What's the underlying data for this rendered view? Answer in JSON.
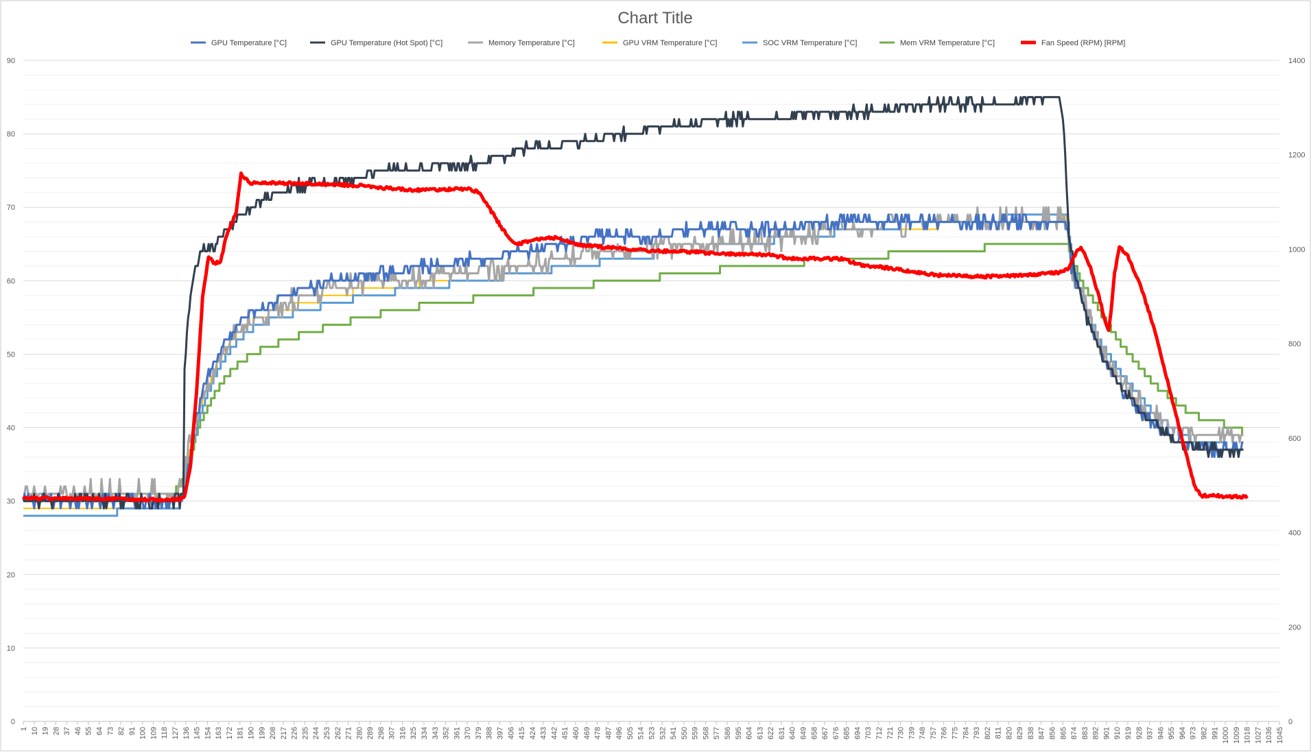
{
  "chart_data": {
    "type": "line",
    "title": "Chart Title",
    "xlabel": "",
    "ylabel": "",
    "y2label": "",
    "xlim": [
      1,
      1045
    ],
    "ylim": [
      0,
      90
    ],
    "y2lim": [
      0,
      1400
    ],
    "yticks": [
      0,
      10,
      20,
      30,
      40,
      50,
      60,
      70,
      80,
      90
    ],
    "y2ticks": [
      0,
      200,
      400,
      600,
      800,
      1000,
      1200,
      1400
    ],
    "xtick_start": 1,
    "xtick_step": 9,
    "xtick_count": 117,
    "grid": "major and minor horizontal",
    "legend_position": "top",
    "series": [
      {
        "name": "GPU Temperature [°C]",
        "axis": "left",
        "color": "#4472c4",
        "width": 3,
        "noise": 0.7,
        "points": [
          [
            1,
            30
          ],
          [
            130,
            30
          ],
          [
            135,
            31
          ],
          [
            138,
            34
          ],
          [
            145,
            42
          ],
          [
            155,
            47
          ],
          [
            165,
            51
          ],
          [
            175,
            53
          ],
          [
            185,
            55
          ],
          [
            200,
            56
          ],
          [
            220,
            58
          ],
          [
            240,
            59
          ],
          [
            260,
            60
          ],
          [
            300,
            61
          ],
          [
            340,
            62
          ],
          [
            380,
            63
          ],
          [
            420,
            64
          ],
          [
            450,
            65
          ],
          [
            480,
            66
          ],
          [
            520,
            66
          ],
          [
            560,
            67
          ],
          [
            620,
            67
          ],
          [
            680,
            68
          ],
          [
            750,
            68
          ],
          [
            860,
            68
          ],
          [
            868,
            68
          ],
          [
            872,
            62
          ],
          [
            885,
            55
          ],
          [
            900,
            49
          ],
          [
            915,
            45
          ],
          [
            930,
            42
          ],
          [
            945,
            40
          ],
          [
            960,
            38
          ],
          [
            985,
            37
          ],
          [
            1015,
            37
          ]
        ]
      },
      {
        "name": "GPU Temperature (Hot Spot) [°C]",
        "axis": "left",
        "color": "#323f4f",
        "width": 3,
        "noise": 0.6,
        "points": [
          [
            1,
            30
          ],
          [
            132,
            30
          ],
          [
            134,
            31
          ],
          [
            135,
            48
          ],
          [
            138,
            55
          ],
          [
            142,
            60
          ],
          [
            146,
            63
          ],
          [
            150,
            64
          ],
          [
            160,
            65
          ],
          [
            170,
            67
          ],
          [
            180,
            69
          ],
          [
            190,
            70
          ],
          [
            200,
            71
          ],
          [
            215,
            72
          ],
          [
            230,
            73
          ],
          [
            260,
            73.5
          ],
          [
            300,
            75
          ],
          [
            340,
            75.5
          ],
          [
            380,
            76
          ],
          [
            420,
            78
          ],
          [
            450,
            78.5
          ],
          [
            470,
            79
          ],
          [
            500,
            80
          ],
          [
            540,
            81
          ],
          [
            590,
            82
          ],
          [
            640,
            82.5
          ],
          [
            700,
            83
          ],
          [
            760,
            84
          ],
          [
            800,
            84
          ],
          [
            830,
            84.5
          ],
          [
            863,
            84.5
          ],
          [
            866,
            80
          ],
          [
            868,
            73
          ],
          [
            870,
            66
          ],
          [
            875,
            61
          ],
          [
            885,
            55
          ],
          [
            900,
            49
          ],
          [
            915,
            45
          ],
          [
            930,
            42
          ],
          [
            945,
            40
          ],
          [
            960,
            38
          ],
          [
            985,
            37
          ],
          [
            1015,
            36.5
          ]
        ]
      },
      {
        "name": "Memory Temperature [°C]",
        "axis": "left",
        "color": "#a5a5a5",
        "width": 3,
        "noise": 1.3,
        "points": [
          [
            1,
            31
          ],
          [
            130,
            31.5
          ],
          [
            135,
            33
          ],
          [
            138,
            37
          ],
          [
            145,
            42
          ],
          [
            155,
            46
          ],
          [
            165,
            50
          ],
          [
            175,
            52
          ],
          [
            185,
            54
          ],
          [
            200,
            55
          ],
          [
            220,
            57
          ],
          [
            240,
            58
          ],
          [
            260,
            59
          ],
          [
            300,
            60
          ],
          [
            340,
            60.5
          ],
          [
            380,
            61.5
          ],
          [
            420,
            62
          ],
          [
            450,
            63
          ],
          [
            480,
            64
          ],
          [
            520,
            64.5
          ],
          [
            560,
            65
          ],
          [
            620,
            65.5
          ],
          [
            680,
            67
          ],
          [
            750,
            68
          ],
          [
            860,
            68.5
          ],
          [
            868,
            68
          ],
          [
            872,
            62
          ],
          [
            885,
            56
          ],
          [
            900,
            50
          ],
          [
            915,
            46
          ],
          [
            930,
            43
          ],
          [
            945,
            41
          ],
          [
            960,
            40
          ],
          [
            985,
            39
          ],
          [
            1015,
            39
          ]
        ]
      },
      {
        "name": "GPU VRM Temperature [°C]",
        "axis": "left",
        "color": "#ffc000",
        "width": 2,
        "noise": 0,
        "points": [
          [
            1,
            29
          ],
          [
            80,
            29
          ],
          [
            85,
            29
          ],
          [
            130,
            29
          ],
          [
            135,
            32
          ],
          [
            140,
            38
          ],
          [
            150,
            44
          ],
          [
            160,
            48
          ],
          [
            170,
            51
          ],
          [
            180,
            53
          ],
          [
            195,
            55
          ],
          [
            215,
            56
          ],
          [
            235,
            57
          ],
          [
            260,
            58
          ],
          [
            290,
            59
          ],
          [
            330,
            59.5
          ],
          [
            380,
            60
          ],
          [
            420,
            61
          ],
          [
            460,
            62
          ],
          [
            500,
            63
          ],
          [
            550,
            64
          ],
          [
            600,
            65
          ],
          [
            650,
            66
          ],
          [
            700,
            67
          ],
          [
            760,
            67.5
          ],
          [
            868,
            68.5
          ],
          [
            870,
            64
          ],
          [
            880,
            58
          ],
          [
            895,
            52
          ],
          [
            910,
            48
          ],
          [
            925,
            45
          ],
          [
            940,
            42
          ],
          [
            955,
            40
          ],
          [
            970,
            38.5
          ],
          [
            1015,
            37
          ]
        ]
      },
      {
        "name": "SOC VRM Temperature [°C]",
        "axis": "left",
        "color": "#5b9bd5",
        "width": 3,
        "noise": 0,
        "points": [
          [
            1,
            28
          ],
          [
            78,
            28
          ],
          [
            80,
            29
          ],
          [
            130,
            29
          ],
          [
            135,
            32
          ],
          [
            140,
            37
          ],
          [
            150,
            43
          ],
          [
            160,
            47
          ],
          [
            170,
            50
          ],
          [
            180,
            52
          ],
          [
            195,
            54
          ],
          [
            215,
            55
          ],
          [
            235,
            56
          ],
          [
            260,
            57
          ],
          [
            290,
            58
          ],
          [
            330,
            59
          ],
          [
            380,
            60
          ],
          [
            420,
            61
          ],
          [
            460,
            62
          ],
          [
            500,
            63
          ],
          [
            550,
            64
          ],
          [
            600,
            65
          ],
          [
            650,
            66
          ],
          [
            700,
            67
          ],
          [
            760,
            68
          ],
          [
            868,
            69
          ],
          [
            872,
            63
          ],
          [
            880,
            58
          ],
          [
            895,
            52
          ],
          [
            910,
            48
          ],
          [
            925,
            45
          ],
          [
            940,
            42
          ],
          [
            955,
            40
          ],
          [
            970,
            38.5
          ],
          [
            1015,
            37
          ]
        ]
      },
      {
        "name": "Mem VRM Temperature [°C]",
        "axis": "left",
        "color": "#70ad47",
        "width": 3,
        "noise": 0,
        "points": [
          [
            1,
            30
          ],
          [
            125,
            31
          ],
          [
            130,
            32
          ],
          [
            135,
            33
          ],
          [
            140,
            36
          ],
          [
            146,
            40
          ],
          [
            155,
            43
          ],
          [
            165,
            46
          ],
          [
            175,
            48
          ],
          [
            190,
            50
          ],
          [
            205,
            51
          ],
          [
            220,
            52
          ],
          [
            240,
            53
          ],
          [
            260,
            54
          ],
          [
            285,
            55
          ],
          [
            310,
            56
          ],
          [
            350,
            57
          ],
          [
            400,
            58
          ],
          [
            450,
            59
          ],
          [
            500,
            60
          ],
          [
            560,
            61
          ],
          [
            600,
            62
          ],
          [
            650,
            62.5
          ],
          [
            700,
            63
          ],
          [
            740,
            64
          ],
          [
            800,
            64.5
          ],
          [
            868,
            65
          ],
          [
            872,
            63
          ],
          [
            880,
            60
          ],
          [
            895,
            56
          ],
          [
            910,
            52
          ],
          [
            925,
            49
          ],
          [
            940,
            46
          ],
          [
            955,
            44
          ],
          [
            970,
            42
          ],
          [
            985,
            41
          ],
          [
            1012,
            40
          ],
          [
            1015,
            39
          ]
        ]
      },
      {
        "name": "Fan Speed (RPM) [RPM]",
        "axis": "right",
        "color": "#ff0000",
        "width": 5,
        "noise": 3,
        "points": [
          [
            1,
            473
          ],
          [
            100,
            470
          ],
          [
            130,
            470
          ],
          [
            135,
            475
          ],
          [
            140,
            540
          ],
          [
            145,
            700
          ],
          [
            150,
            900
          ],
          [
            155,
            985
          ],
          [
            160,
            970
          ],
          [
            165,
            975
          ],
          [
            170,
            1030
          ],
          [
            175,
            1060
          ],
          [
            178,
            1080
          ],
          [
            182,
            1160
          ],
          [
            185,
            1150
          ],
          [
            190,
            1140
          ],
          [
            230,
            1140
          ],
          [
            280,
            1135
          ],
          [
            300,
            1130
          ],
          [
            330,
            1125
          ],
          [
            370,
            1128
          ],
          [
            380,
            1120
          ],
          [
            390,
            1080
          ],
          [
            400,
            1040
          ],
          [
            410,
            1010
          ],
          [
            430,
            1022
          ],
          [
            445,
            1025
          ],
          [
            460,
            1010
          ],
          [
            480,
            1005
          ],
          [
            520,
            997
          ],
          [
            560,
            994
          ],
          [
            580,
            990
          ],
          [
            620,
            988
          ],
          [
            640,
            980
          ],
          [
            680,
            980
          ],
          [
            700,
            965
          ],
          [
            720,
            960
          ],
          [
            760,
            945
          ],
          [
            800,
            942
          ],
          [
            830,
            945
          ],
          [
            860,
            950
          ],
          [
            870,
            960
          ],
          [
            874,
            985
          ],
          [
            880,
            1005
          ],
          [
            888,
            960
          ],
          [
            895,
            900
          ],
          [
            900,
            850
          ],
          [
            903,
            830
          ],
          [
            905,
            870
          ],
          [
            908,
            950
          ],
          [
            912,
            1005
          ],
          [
            918,
            990
          ],
          [
            925,
            950
          ],
          [
            930,
            920
          ],
          [
            940,
            840
          ],
          [
            950,
            740
          ],
          [
            960,
            640
          ],
          [
            968,
            560
          ],
          [
            975,
            495
          ],
          [
            980,
            478
          ],
          [
            1000,
            477
          ],
          [
            1018,
            475
          ]
        ]
      }
    ]
  }
}
